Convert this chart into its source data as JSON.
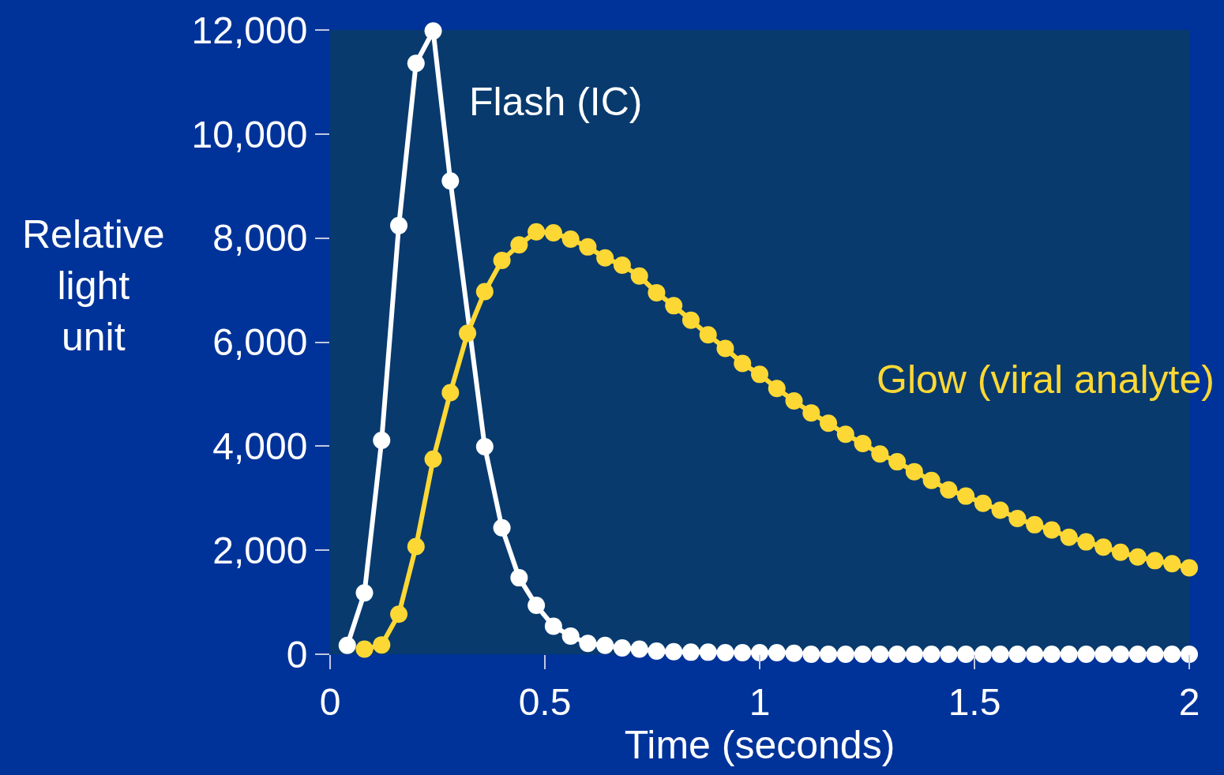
{
  "chart_data": {
    "type": "line",
    "xlabel": "Time (seconds)",
    "ylabel": "Relative light unit",
    "xlim": [
      0,
      2
    ],
    "xticks": [
      0,
      0.5,
      1,
      1.5,
      2
    ],
    "ylim": [
      0,
      12000
    ],
    "yticks": [
      {
        "value": 0,
        "label": "0"
      },
      {
        "value": 2000,
        "label": "2,000"
      },
      {
        "value": 4000,
        "label": "4,000"
      },
      {
        "value": 6000,
        "label": "6,000"
      },
      {
        "value": 8000,
        "label": "8,000"
      },
      {
        "value": 10000,
        "label": "10,000"
      },
      {
        "value": 12000,
        "label": "12,000"
      }
    ],
    "grid": false,
    "legend": false,
    "marker": "circle",
    "line_style": "solid",
    "series": [
      {
        "name": "Flash (IC)",
        "color": "#ffffff",
        "x": [
          0.04,
          0.08,
          0.12,
          0.16,
          0.2,
          0.24,
          0.28,
          0.32,
          0.36,
          0.4,
          0.44,
          0.48,
          0.52,
          0.56,
          0.6,
          0.64,
          0.68,
          0.72,
          0.76,
          0.8,
          0.84,
          0.88,
          0.92,
          0.96,
          1.0,
          1.04,
          1.08,
          1.12,
          1.16,
          1.2,
          1.24,
          1.28,
          1.32,
          1.36,
          1.4,
          1.44,
          1.48,
          1.52,
          1.56,
          1.6,
          1.64,
          1.68,
          1.72,
          1.76,
          1.8,
          1.84,
          1.88,
          1.92,
          1.96,
          2.0
        ],
        "values": [
          170,
          1180,
          4110,
          8240,
          11360,
          11980,
          9100,
          null,
          3990,
          2430,
          1470,
          940,
          540,
          350,
          210,
          170,
          120,
          100,
          60,
          50,
          40,
          40,
          30,
          30,
          30,
          30,
          20,
          0,
          0,
          0,
          0,
          0,
          0,
          0,
          0,
          0,
          0,
          0,
          0,
          0,
          0,
          0,
          0,
          0,
          0,
          0,
          0,
          0,
          0,
          0
        ]
      },
      {
        "name": "Glow (viral analyte)",
        "color": "#fdd835",
        "x": [
          0.08,
          0.12,
          0.16,
          0.2,
          0.24,
          0.28,
          0.32,
          0.36,
          0.4,
          0.44,
          0.48,
          0.52,
          0.56,
          0.6,
          0.64,
          0.68,
          0.72,
          0.76,
          0.8,
          0.84,
          0.88,
          0.92,
          0.96,
          1.0,
          1.04,
          1.08,
          1.12,
          1.16,
          1.2,
          1.24,
          1.28,
          1.32,
          1.36,
          1.4,
          1.44,
          1.48,
          1.52,
          1.56,
          1.6,
          1.64,
          1.68,
          1.72,
          1.76,
          1.8,
          1.84,
          1.88,
          1.92,
          1.96,
          2.0
        ],
        "values": [
          100,
          180,
          770,
          2070,
          3750,
          5030,
          6170,
          6970,
          7570,
          7870,
          8120,
          8100,
          7980,
          7830,
          7620,
          7480,
          7270,
          6950,
          6700,
          6420,
          6140,
          5880,
          5590,
          5380,
          5110,
          4870,
          4640,
          4440,
          4230,
          4050,
          3850,
          3700,
          3510,
          3340,
          3160,
          3040,
          2900,
          2770,
          2610,
          2490,
          2390,
          2250,
          2160,
          2060,
          1960,
          1870,
          1800,
          1740,
          1660
        ]
      }
    ]
  }
}
